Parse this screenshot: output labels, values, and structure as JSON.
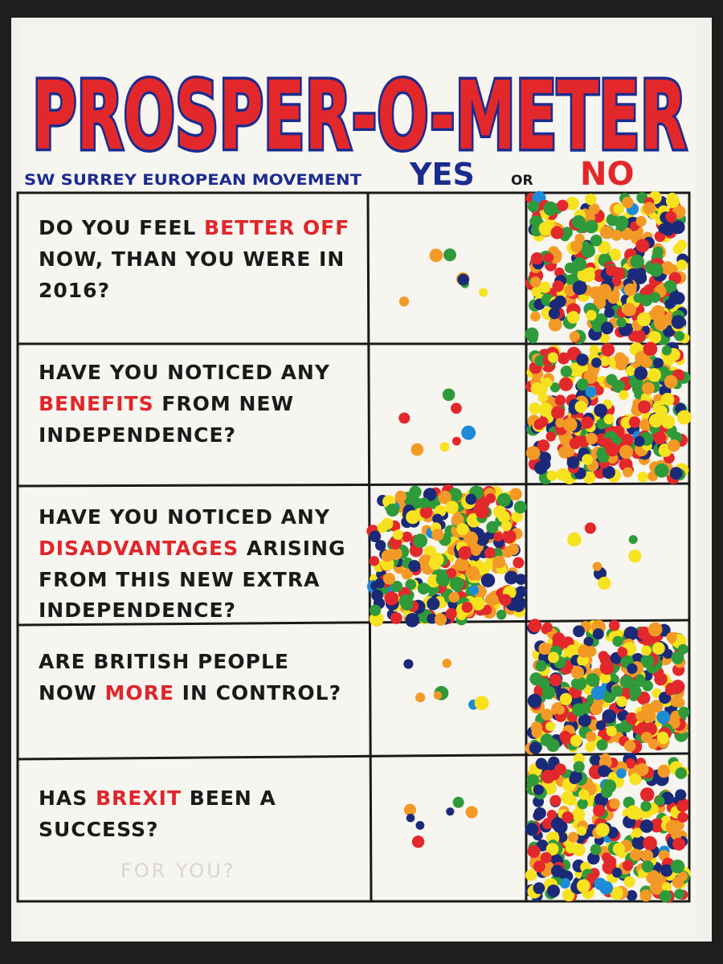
{
  "header": {
    "title": "PROSPER-O-METER",
    "subtitle": "SW SURREY EUROPEAN MOVEMENT",
    "yes_label": "YES",
    "or_label": "OR",
    "no_label": "NO"
  },
  "questions": [
    {
      "before": "DO YOU FEEL ",
      "highlight": "BETTER OFF",
      "after": " NOW, THAN YOU WERE IN 2016?"
    },
    {
      "before": "HAVE YOU NOTICED ANY ",
      "highlight": "BENEFITS",
      "after": " FROM NEW INDEPENDENCE?"
    },
    {
      "before": "HAVE YOU NOTICED ANY ",
      "highlight": "DISADVANTAGES",
      "after": " ARISING FROM THIS NEW EXTRA INDEPENDENCE?"
    },
    {
      "before": "ARE BRITISH PEOPLE NOW ",
      "highlight": "MORE",
      "after": " IN CONTROL?"
    },
    {
      "before": "HAS ",
      "highlight": "BREXIT",
      "after": " BEEN A SUCCESS?"
    }
  ],
  "faint_note": "FOR YOU?"
}
